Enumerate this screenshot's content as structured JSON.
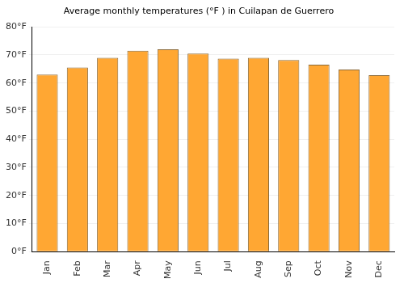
{
  "chart_data": {
    "type": "bar",
    "title": "Average monthly temperatures (°F ) in Cuilapan de Guerrero",
    "categories": [
      "Jan",
      "Feb",
      "Mar",
      "Apr",
      "May",
      "Jun",
      "Jul",
      "Aug",
      "Sep",
      "Oct",
      "Nov",
      "Dec"
    ],
    "values": [
      63,
      65.5,
      69,
      71.5,
      72,
      70.5,
      68.7,
      69,
      68.2,
      66.5,
      64.8,
      62.8
    ],
    "color": "#ffa733",
    "ylim": [
      0,
      80
    ],
    "yticks": [
      {
        "value": 0,
        "label": "0°F"
      },
      {
        "value": 10,
        "label": "10°F"
      },
      {
        "value": 20,
        "label": "20°F"
      },
      {
        "value": 30,
        "label": "30°F"
      },
      {
        "value": 40,
        "label": "40°F"
      },
      {
        "value": 50,
        "label": "50°F"
      },
      {
        "value": 60,
        "label": "60°F"
      },
      {
        "value": 70,
        "label": "70°F"
      },
      {
        "value": 80,
        "label": "80°F"
      }
    ],
    "grid": true
  }
}
